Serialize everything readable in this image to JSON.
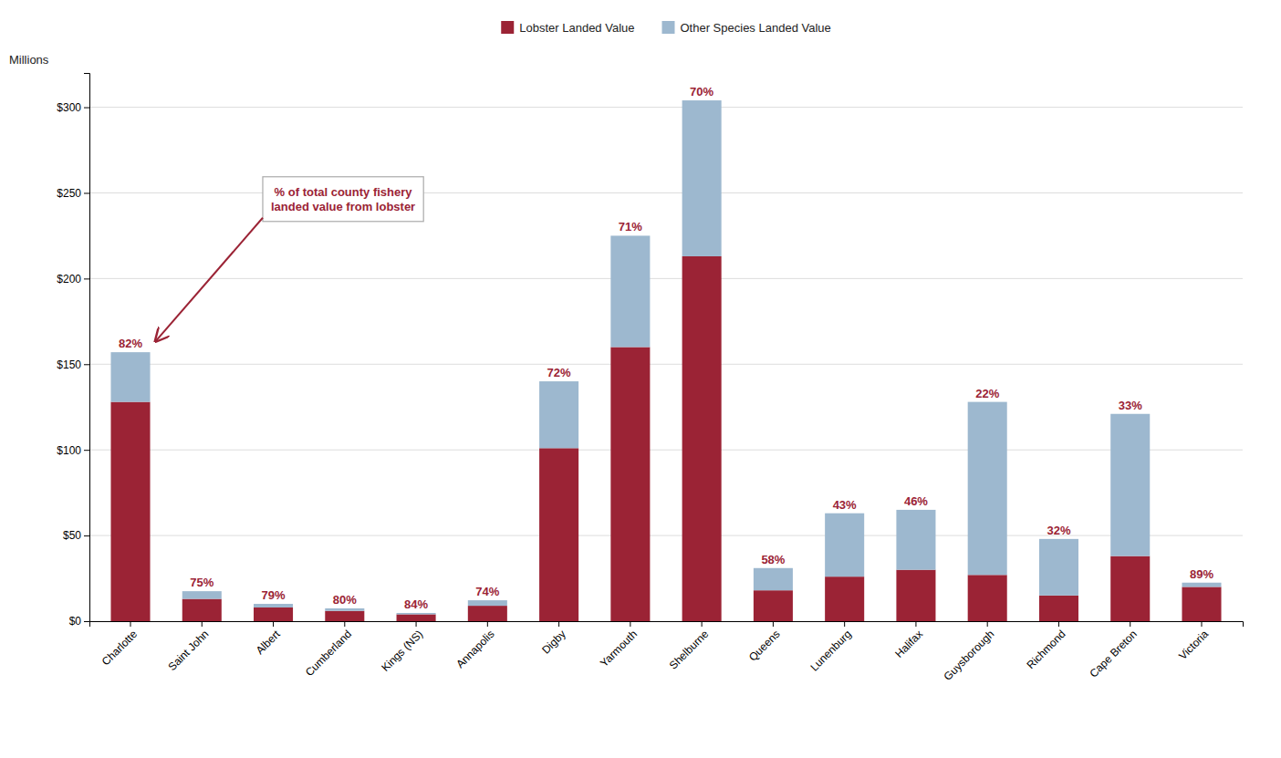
{
  "chart_data": {
    "type": "bar",
    "stacked": true,
    "ylabel": "Millions",
    "categories": [
      "Charlotte",
      "Saint John",
      "Albert",
      "Cumberland",
      "Kings (NS)",
      "Annapolis",
      "Digby",
      "Yarmouth",
      "Shelburne",
      "Queens",
      "Lunenburg",
      "Halifax",
      "Guysborough",
      "Richmond",
      "Cape Breton",
      "Victoria"
    ],
    "series": [
      {
        "name": "Lobster Landed Value",
        "color": "#9B2335",
        "values": [
          128,
          13,
          8,
          6,
          4,
          9,
          101,
          160,
          213,
          18,
          26,
          30,
          27,
          15,
          38,
          20
        ]
      },
      {
        "name": "Other Species Landed Value",
        "color": "#9DB8CF",
        "values": [
          29,
          4.5,
          2.1,
          1.5,
          0.8,
          3.2,
          39,
          65,
          91,
          13,
          37,
          35,
          101,
          33,
          83,
          2.5
        ]
      }
    ],
    "percentages": [
      "82%",
      "75%",
      "79%",
      "80%",
      "84%",
      "74%",
      "72%",
      "71%",
      "70%",
      "58%",
      "43%",
      "46%",
      "22%",
      "32%",
      "33%",
      "89%"
    ],
    "annotations": [
      {
        "text": "% of total county fishery\nlanded value from lobster"
      }
    ],
    "ylim": [
      0,
      320
    ],
    "yticks": [
      {
        "value": 0,
        "label": "$0"
      },
      {
        "value": 50,
        "label": "$50"
      },
      {
        "value": 100,
        "label": "$100"
      },
      {
        "value": 150,
        "label": "$150"
      },
      {
        "value": 200,
        "label": "$200"
      },
      {
        "value": 250,
        "label": "$250"
      },
      {
        "value": 300,
        "label": "$300"
      }
    ],
    "grid": true,
    "legend": "top"
  }
}
